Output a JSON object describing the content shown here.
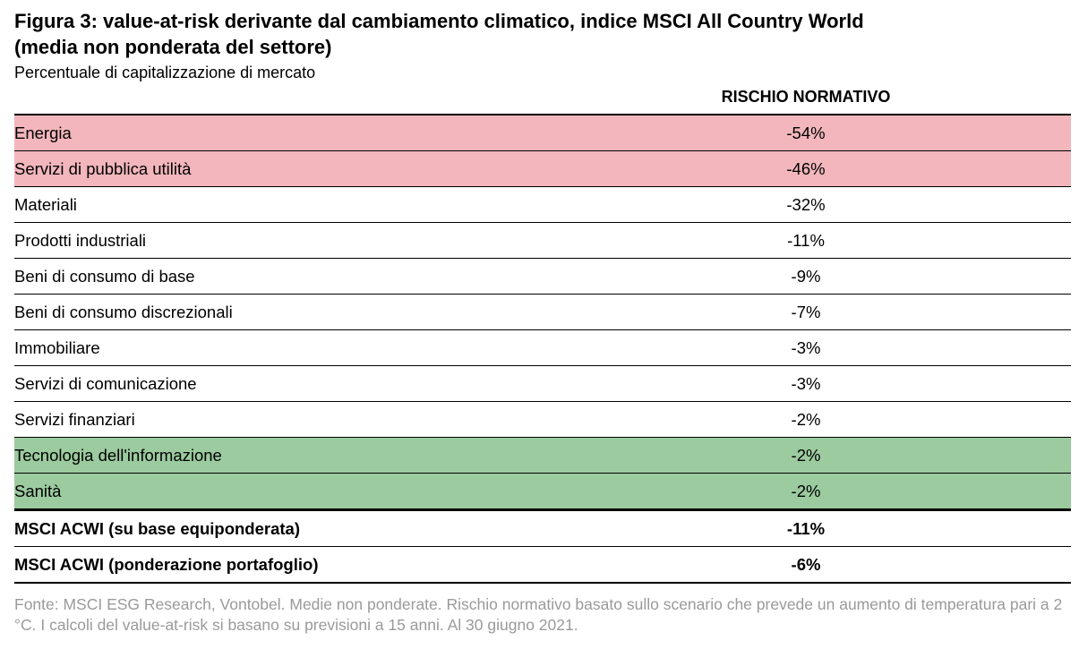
{
  "chart_data": {
    "type": "table",
    "title_line1": "Figura 3: value-at-risk derivante dal cambiamento climatico, indice MSCI All Country World",
    "title_line2": "(media non ponderata del settore)",
    "subtitle": "Percentuale di capitalizzazione di mercato",
    "column_header": "RISCHIO NORMATIVO",
    "highlight_colors": {
      "red": "#f2b6bc",
      "green": "#9bcb9f"
    },
    "rows": [
      {
        "label": "Energia",
        "value_text": "-54%",
        "value": -54,
        "highlight": "red"
      },
      {
        "label": "Servizi di pubblica utilità",
        "value_text": "-46%",
        "value": -46,
        "highlight": "red"
      },
      {
        "label": "Materiali",
        "value_text": "-32%",
        "value": -32,
        "highlight": "none"
      },
      {
        "label": "Prodotti industriali",
        "value_text": "-11%",
        "value": -11,
        "highlight": "none"
      },
      {
        "label": "Beni di consumo di base",
        "value_text": "-9%",
        "value": -9,
        "highlight": "none"
      },
      {
        "label": "Beni di consumo discrezionali",
        "value_text": "-7%",
        "value": -7,
        "highlight": "none"
      },
      {
        "label": "Immobiliare",
        "value_text": "-3%",
        "value": -3,
        "highlight": "none"
      },
      {
        "label": "Servizi di comunicazione",
        "value_text": "-3%",
        "value": -3,
        "highlight": "none"
      },
      {
        "label": "Servizi finanziari",
        "value_text": "-2%",
        "value": -2,
        "highlight": "none"
      },
      {
        "label": "Tecnologia dell'informazione",
        "value_text": "-2%",
        "value": -2,
        "highlight": "green"
      },
      {
        "label": "Sanità",
        "value_text": "-2%",
        "value": -2,
        "highlight": "green"
      }
    ],
    "totals": [
      {
        "label": "MSCI ACWI (su base equiponderata)",
        "value_text": "-11%",
        "value": -11
      },
      {
        "label": "MSCI ACWI (ponderazione portafoglio)",
        "value_text": "-6%",
        "value": -6
      }
    ],
    "footnote": "Fonte: MSCI ESG Research, Vontobel. Medie non ponderate. Rischio normativo basato sullo scenario che prevede un aumento di temperatura pari a 2 °C. I calcoli del value-at-risk si basano su previsioni a 15 anni. Al 30 giugno 2021."
  }
}
